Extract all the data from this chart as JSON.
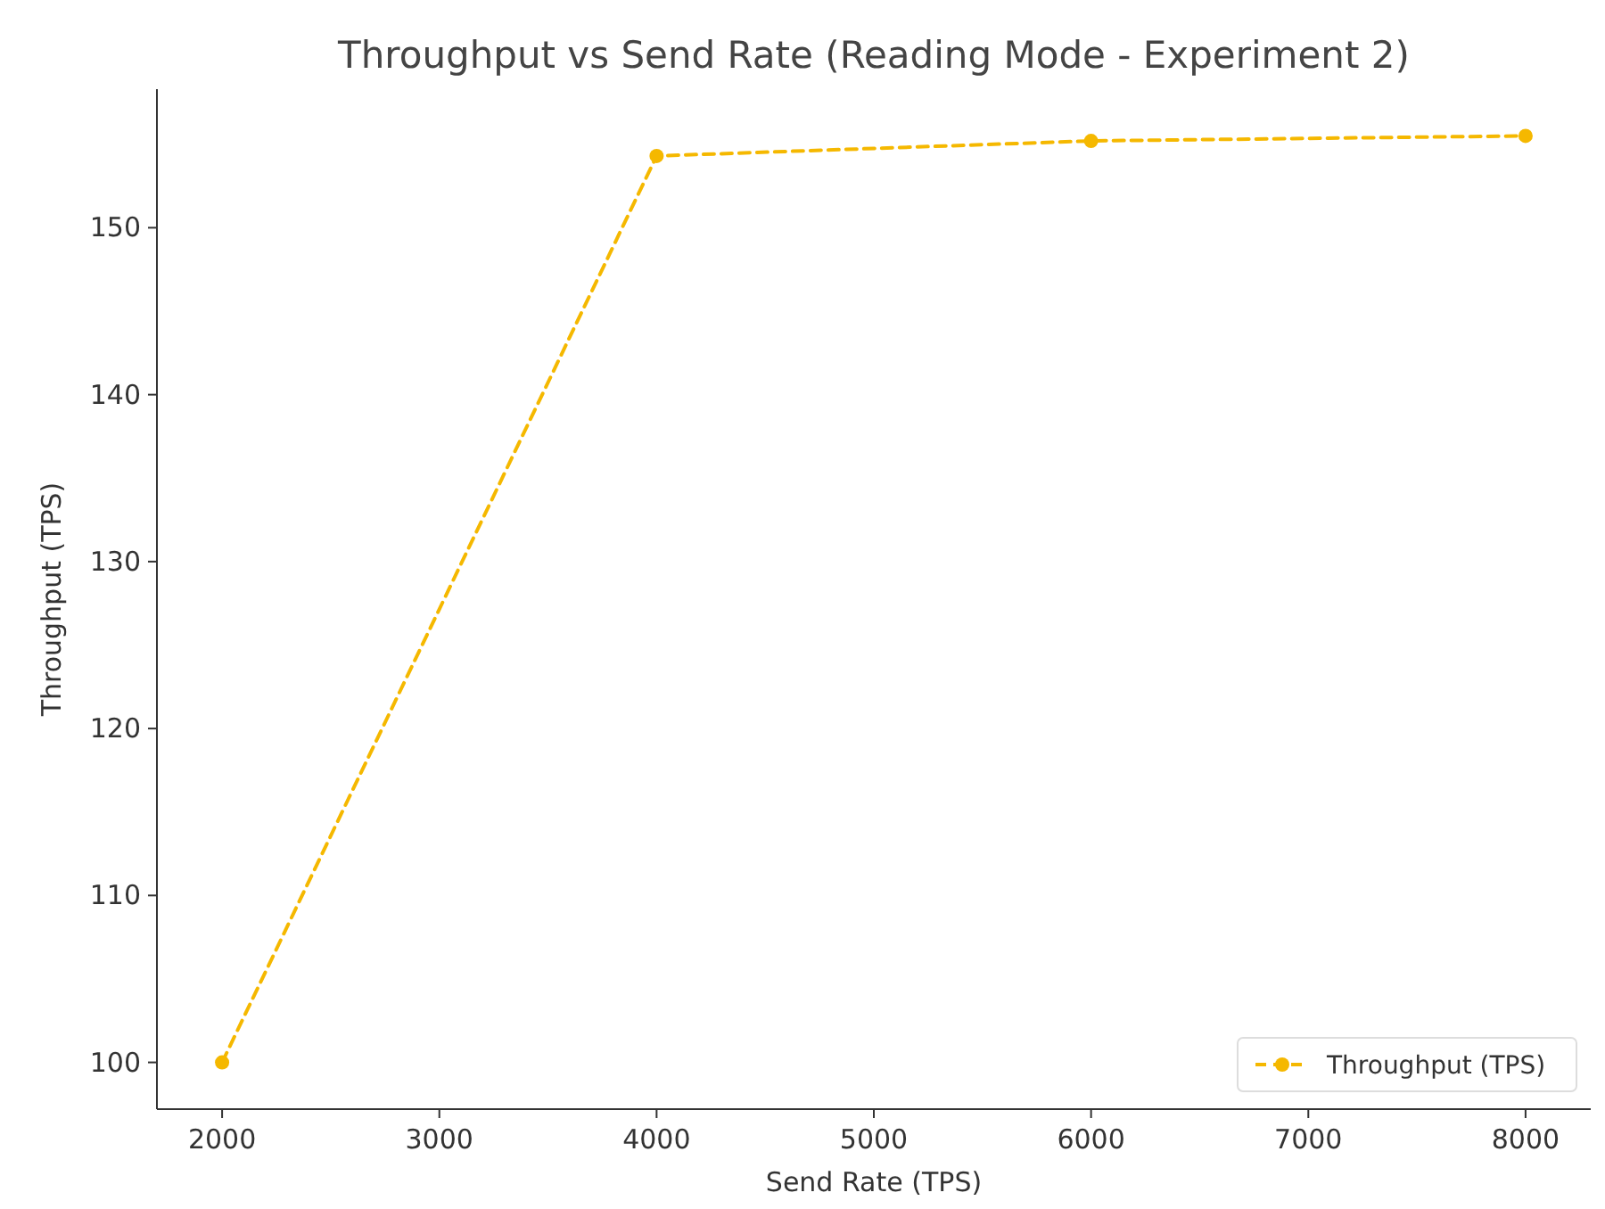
{
  "chart_data": {
    "type": "line",
    "title": "Throughput vs Send Rate (Reading Mode - Experiment 2)",
    "xlabel": "Send Rate (TPS)",
    "ylabel": "Throughput (TPS)",
    "x": [
      2000,
      4000,
      6000,
      8000
    ],
    "series": [
      {
        "name": "Throughput (TPS)",
        "color": "#f5b800",
        "values": [
          100,
          154.3,
          155.2,
          155.5
        ]
      }
    ],
    "xlim": [
      1700,
      8300
    ],
    "ylim": [
      97.2,
      158.3
    ],
    "xticks": [
      2000,
      3000,
      4000,
      5000,
      6000,
      7000,
      8000
    ],
    "yticks": [
      100,
      110,
      120,
      130,
      140,
      150
    ],
    "grid": false,
    "legend": "bottom right",
    "marker": "circle",
    "line_style": "dashed"
  }
}
